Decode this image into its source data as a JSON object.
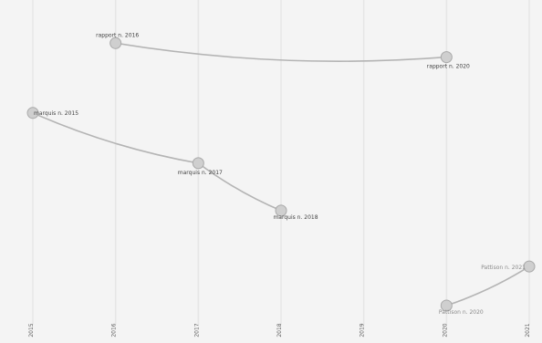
{
  "chart_data": {
    "type": "line",
    "title": "",
    "xlabel": "",
    "ylabel": "",
    "x_ticks": [
      "2015",
      "2016",
      "2017",
      "2018",
      "2019",
      "2020",
      "2021"
    ],
    "xlim": [
      2015,
      2021
    ],
    "ylim": [
      0,
      100
    ],
    "grid": true,
    "points": [
      {
        "x": 2016,
        "y": 95,
        "label": "rapport n. 2016",
        "faint": false
      },
      {
        "x": 2020,
        "y": 90,
        "label": "rapport n. 2020",
        "faint": false
      },
      {
        "x": 2015,
        "y": 70,
        "label": "marquis n. 2015",
        "faint": false
      },
      {
        "x": 2017,
        "y": 52,
        "label": "marquis n. 2017",
        "faint": false
      },
      {
        "x": 2018,
        "y": 35,
        "label": "marquis n. 2018",
        "faint": false
      },
      {
        "x": 2021,
        "y": 15,
        "label": "Pattison n. 2021",
        "faint": true
      },
      {
        "x": 2020,
        "y": 1,
        "label": "Pattison n. 2020",
        "faint": true
      }
    ],
    "connections": [
      [
        0,
        1
      ],
      [
        2,
        3
      ],
      [
        3,
        4
      ],
      [
        6,
        5
      ]
    ],
    "colors": {
      "background": "#f4f4f4",
      "line": "#b4b4b4",
      "point": "#cfcfcf"
    }
  }
}
